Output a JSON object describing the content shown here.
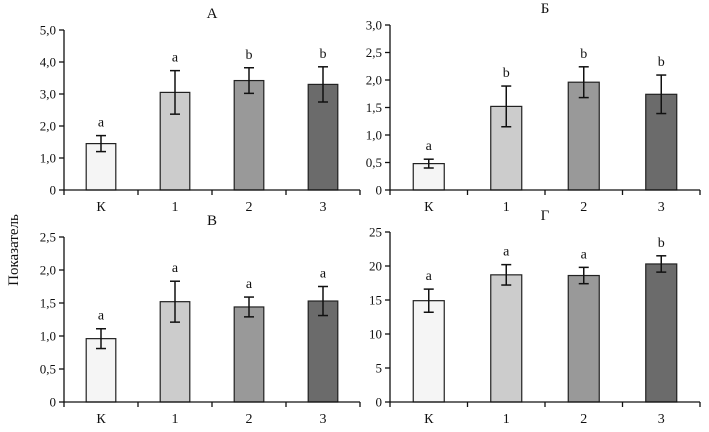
{
  "ylabel": "Показатель",
  "chart_data": [
    {
      "type": "bar",
      "title": "А",
      "categories": [
        "К",
        "1",
        "2",
        "3"
      ],
      "values": [
        1.45,
        3.05,
        3.42,
        3.3
      ],
      "errors": [
        0.25,
        0.68,
        0.4,
        0.55
      ],
      "sig_letters": [
        "a",
        "a",
        "b",
        "b"
      ],
      "colors": [
        "#f5f5f5",
        "#cccccc",
        "#999999",
        "#6b6b6b"
      ],
      "ylim": [
        0,
        5
      ],
      "yticks": [
        0,
        1,
        2,
        3,
        4,
        5
      ],
      "yticklabels": [
        "0",
        "1,0",
        "2,0",
        "3,0",
        "4,0",
        "5,0"
      ],
      "xlabel": "",
      "ylabel": "Показатель"
    },
    {
      "type": "bar",
      "title": "Б",
      "categories": [
        "К",
        "1",
        "2",
        "3"
      ],
      "values": [
        0.48,
        1.52,
        1.96,
        1.74
      ],
      "errors": [
        0.08,
        0.37,
        0.28,
        0.35
      ],
      "sig_letters": [
        "a",
        "b",
        "b",
        "b"
      ],
      "colors": [
        "#f5f5f5",
        "#cccccc",
        "#999999",
        "#6b6b6b"
      ],
      "ylim": [
        0,
        3
      ],
      "yticks": [
        0,
        0.5,
        1,
        1.5,
        2,
        2.5,
        3
      ],
      "yticklabels": [
        "0",
        "0,5",
        "1,0",
        "1,5",
        "2,0",
        "2,5",
        "3,0"
      ],
      "xlabel": "",
      "ylabel": "Показатель"
    },
    {
      "type": "bar",
      "title": "В",
      "categories": [
        "К",
        "1",
        "2",
        "3"
      ],
      "values": [
        0.96,
        1.52,
        1.44,
        1.53
      ],
      "errors": [
        0.15,
        0.31,
        0.15,
        0.22
      ],
      "sig_letters": [
        "a",
        "a",
        "a",
        "a"
      ],
      "colors": [
        "#f5f5f5",
        "#cccccc",
        "#999999",
        "#6b6b6b"
      ],
      "ylim": [
        0,
        2.5
      ],
      "yticks": [
        0,
        0.5,
        1,
        1.5,
        2,
        2.5
      ],
      "yticklabels": [
        "0",
        "0,5",
        "1,0",
        "1,5",
        "2,0",
        "2,5"
      ],
      "xlabel": "",
      "ylabel": "Показатель"
    },
    {
      "type": "bar",
      "title": "Г",
      "categories": [
        "К",
        "1",
        "2",
        "3"
      ],
      "values": [
        14.9,
        18.7,
        18.6,
        20.3
      ],
      "errors": [
        1.7,
        1.5,
        1.2,
        1.2
      ],
      "sig_letters": [
        "a",
        "a",
        "a",
        "b"
      ],
      "colors": [
        "#f5f5f5",
        "#cccccc",
        "#999999",
        "#6b6b6b"
      ],
      "ylim": [
        0,
        25
      ],
      "yticks": [
        0,
        5,
        10,
        15,
        20,
        25
      ],
      "yticklabels": [
        "0",
        "5",
        "10",
        "15",
        "20",
        "25"
      ],
      "xlabel": "",
      "ylabel": "Показатель"
    }
  ]
}
